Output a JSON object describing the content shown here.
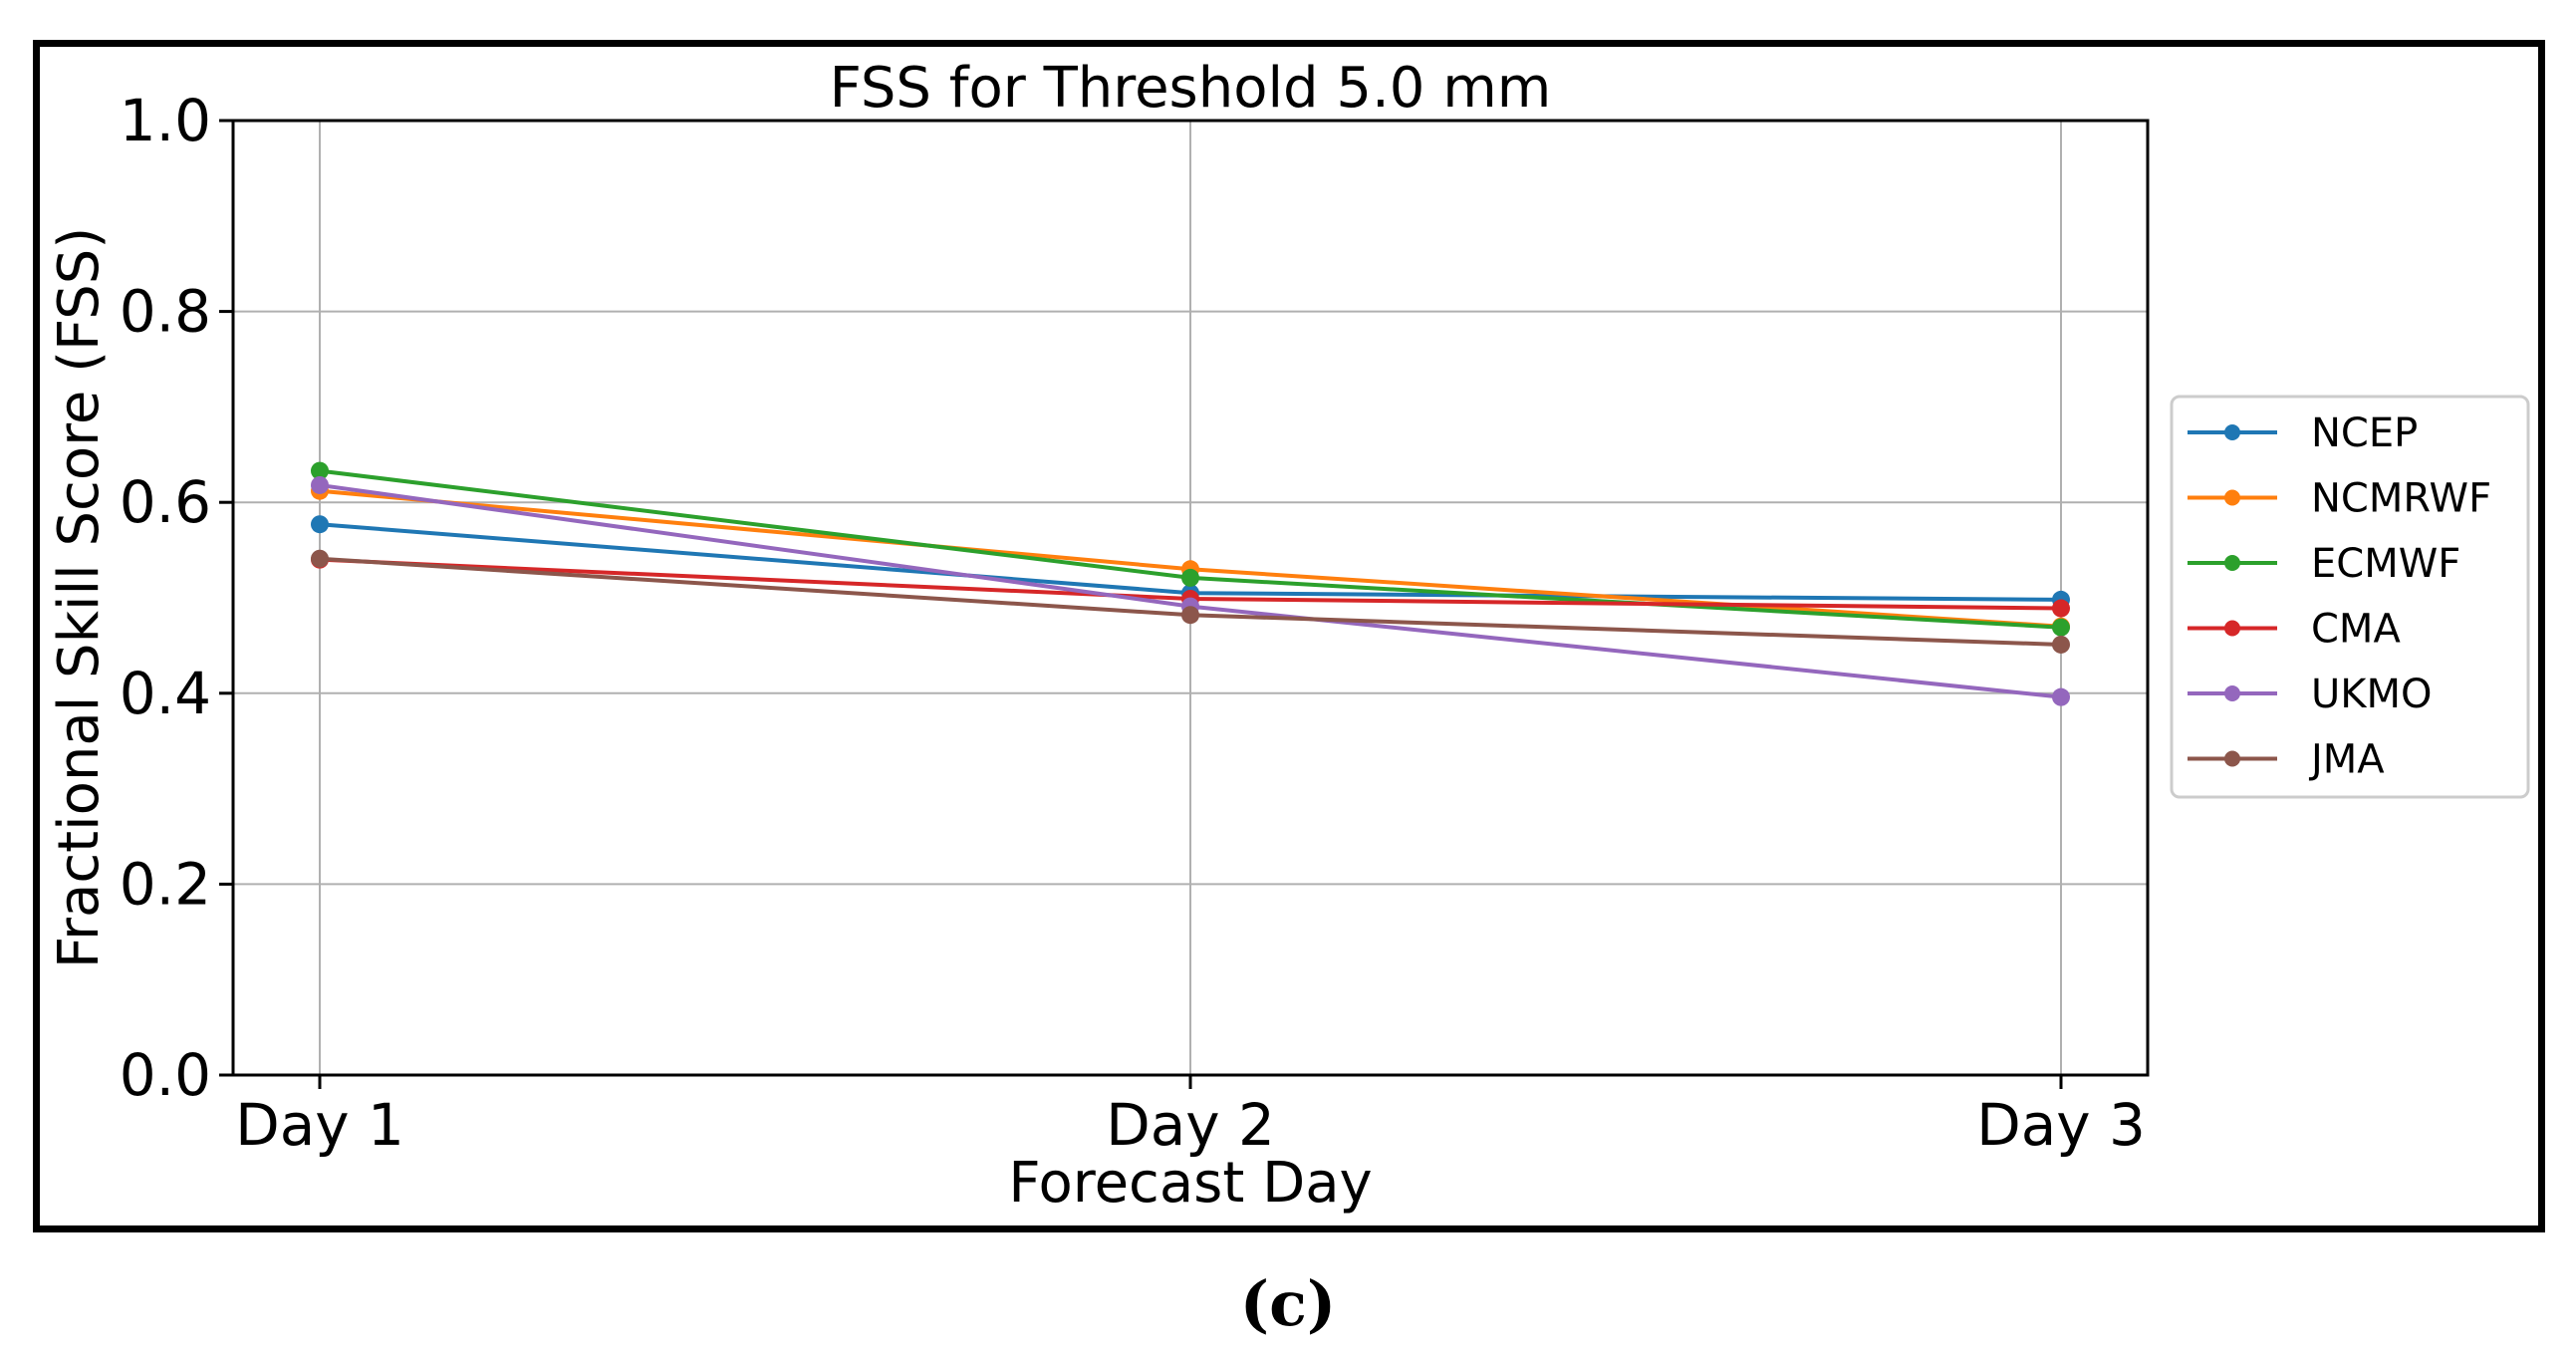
{
  "figure": {
    "caption": "(c)"
  },
  "chart_data": {
    "type": "line",
    "title": "FSS for Threshold 5.0 mm",
    "xlabel": "Forecast Day",
    "ylabel": "Fractional Skill Score (FSS)",
    "categories": [
      "Day 1",
      "Day 2",
      "Day 3"
    ],
    "ylim": [
      0.0,
      1.0
    ],
    "yticks": [
      "0.0",
      "0.2",
      "0.4",
      "0.6",
      "0.8",
      "1.0"
    ],
    "ytick_values": [
      0.0,
      0.2,
      0.4,
      0.6,
      0.8,
      1.0
    ],
    "grid": true,
    "legend_position": "right, outside plot",
    "series": [
      {
        "name": "NCEP",
        "color": "#1f77b4",
        "values": [
          0.577,
          0.505,
          0.498
        ]
      },
      {
        "name": "NCMRWF",
        "color": "#ff7f0e",
        "values": [
          0.612,
          0.53,
          0.47
        ]
      },
      {
        "name": "ECMWF",
        "color": "#2ca02c",
        "values": [
          0.633,
          0.521,
          0.469
        ]
      },
      {
        "name": "CMA",
        "color": "#d62728",
        "values": [
          0.54,
          0.499,
          0.489
        ]
      },
      {
        "name": "UKMO",
        "color": "#9467bd",
        "values": [
          0.618,
          0.491,
          0.396
        ]
      },
      {
        "name": "JMA",
        "color": "#8c564b",
        "values": [
          0.541,
          0.482,
          0.451
        ]
      }
    ]
  }
}
